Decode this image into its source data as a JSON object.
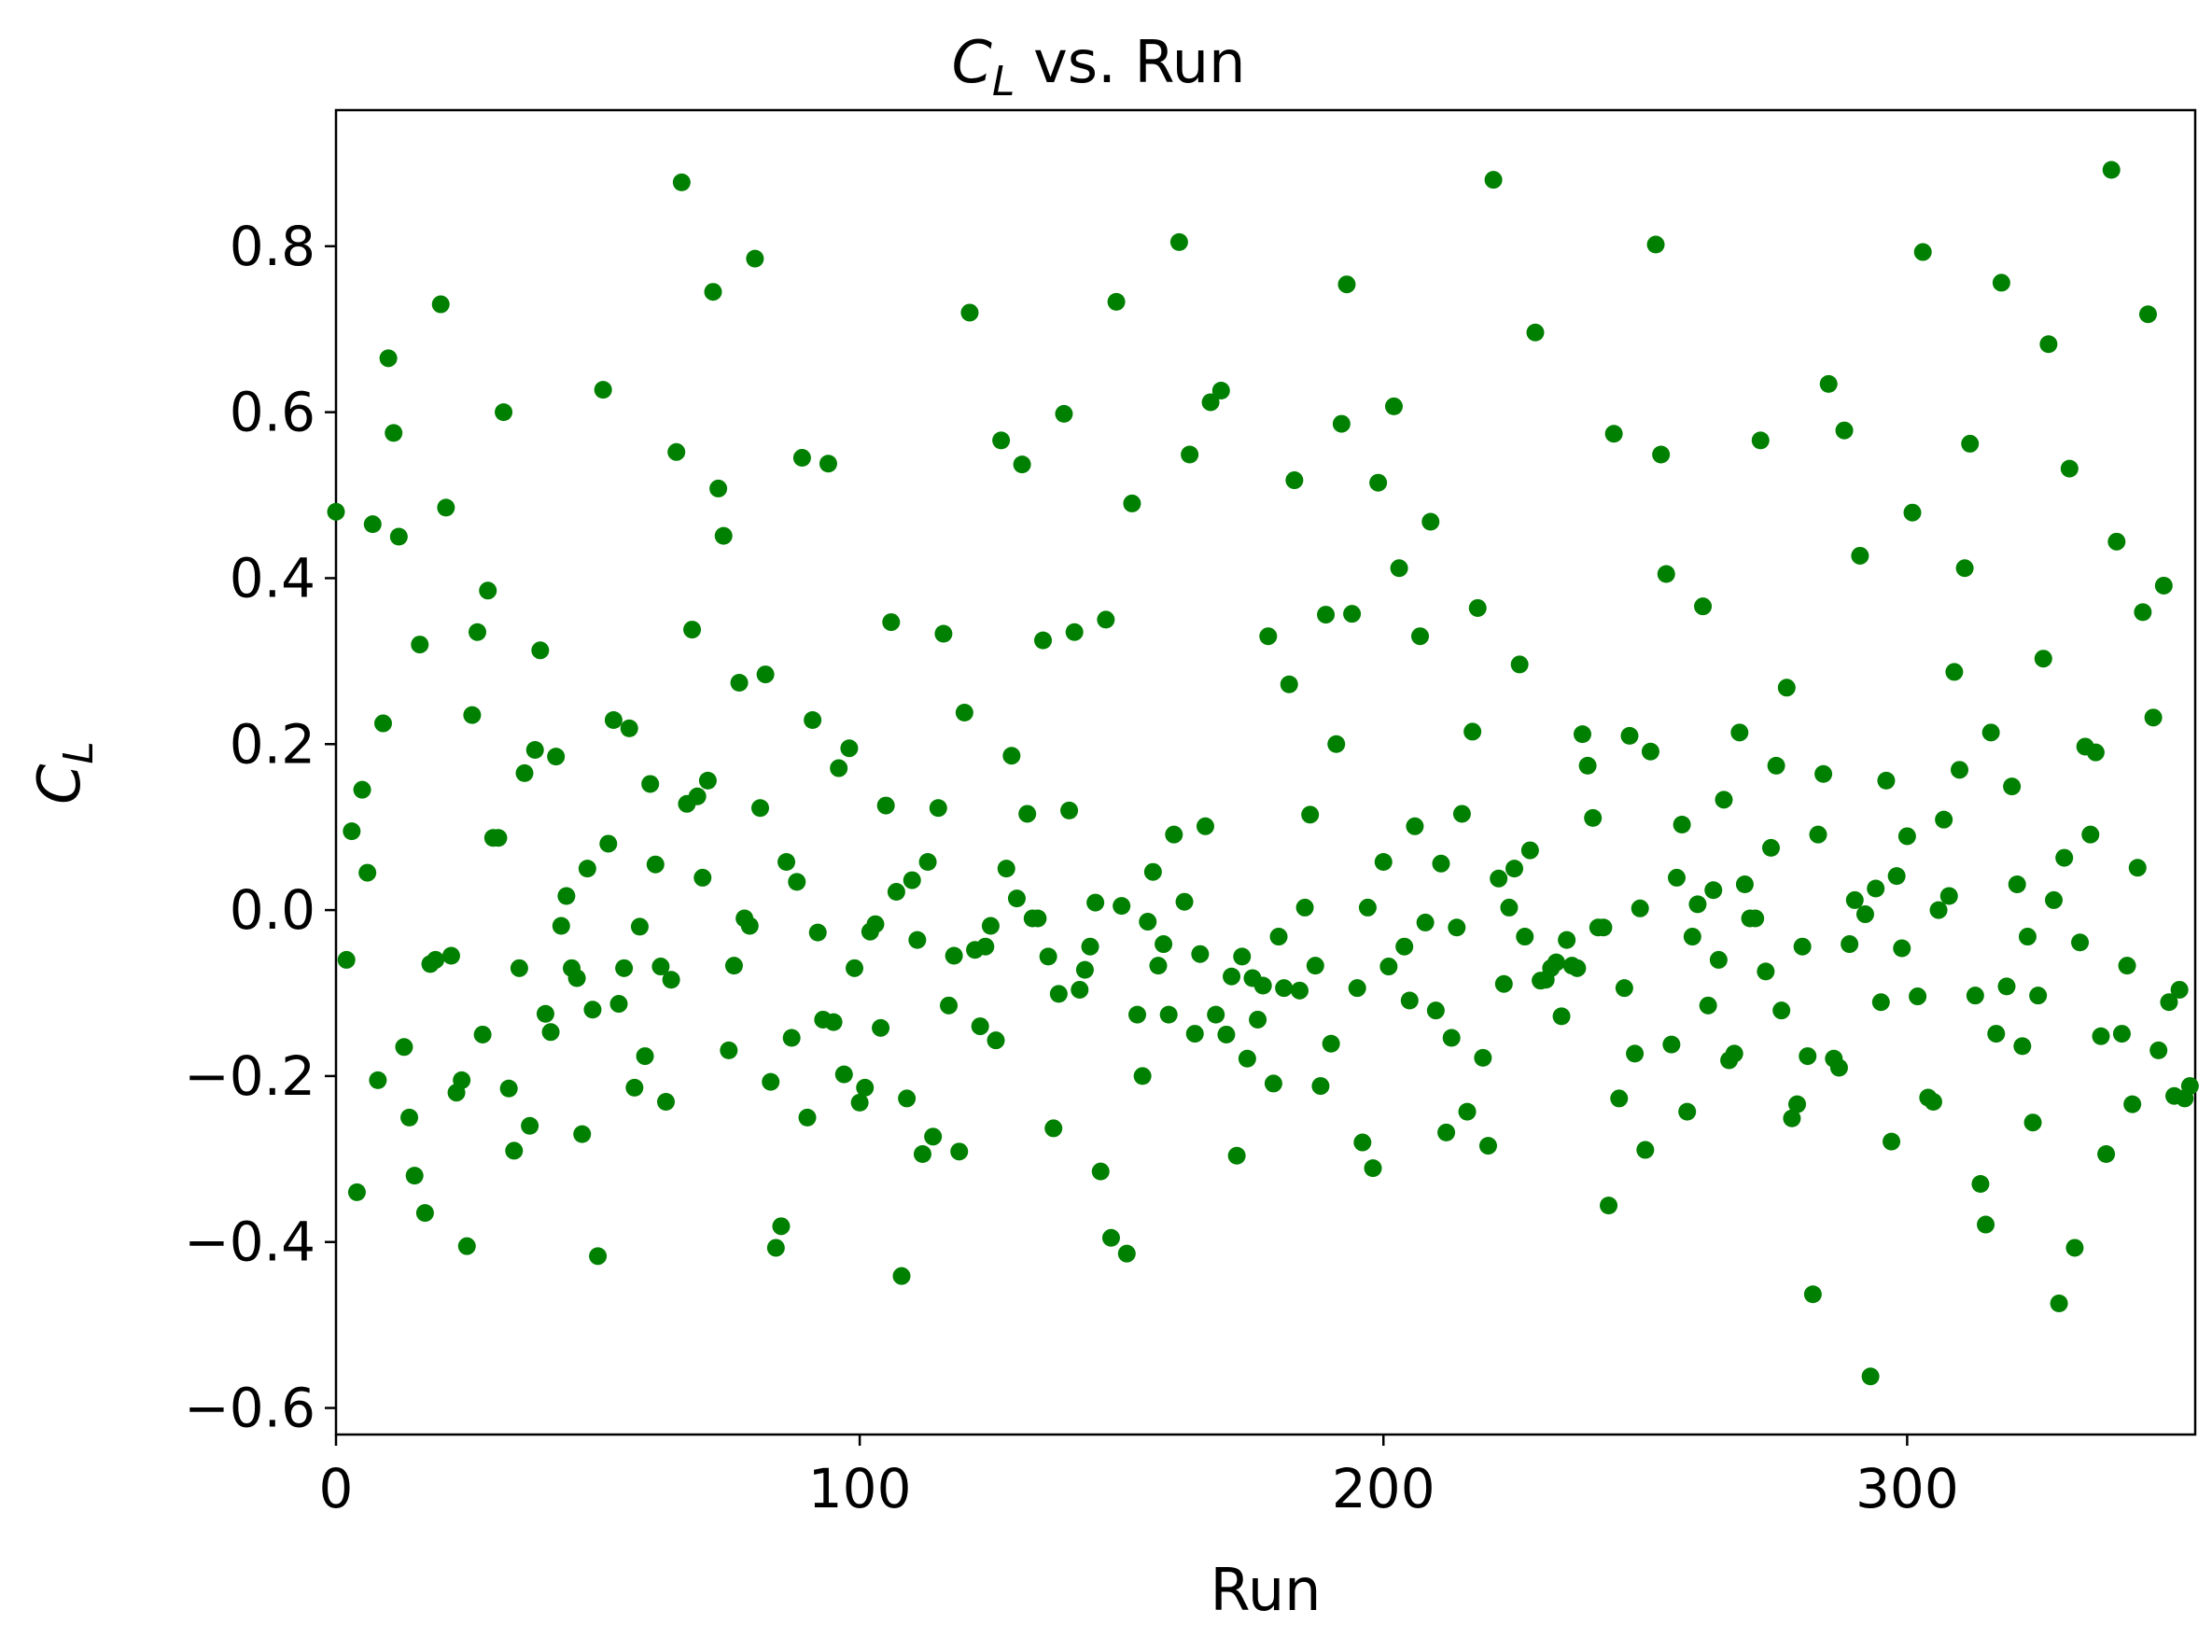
{
  "chart_data": {
    "type": "scatter",
    "title": {
      "symbol": "C",
      "subscript": "L",
      "rest": " vs. Run"
    },
    "xlabel": "Run",
    "ylabel": {
      "symbol": "C",
      "subscript": "L"
    },
    "color": "#008000",
    "xlim": [
      0,
      355
    ],
    "ylim": [
      -0.632,
      0.964
    ],
    "xticks": [
      0,
      100,
      200,
      300
    ],
    "yticks": [
      {
        "value": -0.6,
        "label": "−0.6"
      },
      {
        "value": -0.4,
        "label": "−0.4"
      },
      {
        "value": -0.2,
        "label": "−0.2"
      },
      {
        "value": 0,
        "label": "0.0"
      },
      0.2,
      0.4,
      0.6,
      0.8
    ],
    "x": [
      0,
      2,
      3,
      4,
      5,
      6,
      7,
      8,
      9,
      10,
      11,
      12,
      13,
      14,
      15,
      16,
      17,
      18,
      19,
      20,
      21,
      22,
      23,
      24,
      25,
      26,
      27,
      28,
      29,
      30,
      31,
      32,
      33,
      34,
      35,
      36,
      37,
      38,
      39,
      40,
      41,
      42,
      43,
      44,
      45,
      46,
      47,
      48,
      49,
      50,
      51,
      52,
      53,
      54,
      55,
      56,
      57,
      58,
      59,
      60,
      61,
      62,
      63,
      64,
      65,
      66,
      67,
      68,
      69,
      70,
      71,
      72,
      73,
      74,
      75,
      76,
      77,
      78,
      79,
      80,
      81,
      82,
      83,
      84,
      85,
      86,
      87,
      88,
      89,
      90,
      91,
      92,
      93,
      94,
      95,
      96,
      97,
      98,
      99,
      100,
      101,
      102,
      103,
      104,
      105,
      106,
      107,
      108,
      109,
      110,
      111,
      112,
      113,
      114,
      115,
      116,
      117,
      118,
      119,
      120,
      121,
      122,
      123,
      124,
      125,
      126,
      127,
      128,
      129,
      130,
      131,
      132,
      133,
      134,
      135,
      136,
      137,
      138,
      139,
      140,
      141,
      142,
      143,
      144,
      145,
      146,
      147,
      148,
      149,
      150,
      151,
      152,
      153,
      154,
      155,
      156,
      157,
      158,
      159,
      160,
      161,
      162,
      163,
      164,
      165,
      166,
      167,
      168,
      169,
      170,
      171,
      172,
      173,
      174,
      175,
      176,
      177,
      178,
      179,
      180,
      181,
      182,
      183,
      184,
      185,
      186,
      187,
      188,
      189,
      190,
      191,
      192,
      193,
      194,
      195,
      196,
      197,
      198,
      199,
      200,
      201,
      202,
      203,
      204,
      205,
      206,
      207,
      208,
      209,
      210,
      211,
      212,
      213,
      214,
      215,
      216,
      217,
      218,
      219,
      220,
      221,
      222,
      223,
      224,
      225,
      226,
      227,
      228,
      229,
      230,
      231,
      232,
      233,
      234,
      235,
      236,
      237,
      238,
      239,
      240,
      241,
      242,
      243,
      244,
      245,
      246,
      247,
      248,
      249,
      250,
      251,
      252,
      253,
      254,
      255,
      256,
      257,
      258,
      259,
      260,
      261,
      262,
      263,
      264,
      265,
      266,
      267,
      268,
      269,
      270,
      271,
      272,
      273,
      274,
      275,
      276,
      277,
      278,
      279,
      280,
      281,
      282,
      283,
      284,
      285,
      286,
      287,
      288,
      289,
      290,
      291,
      292,
      293,
      294,
      295,
      296,
      297,
      298,
      299,
      300,
      301,
      302,
      303,
      304,
      305,
      306,
      307,
      308,
      309,
      310,
      311,
      312,
      313,
      314,
      315,
      316,
      317,
      318,
      319,
      320,
      321,
      322,
      323,
      324,
      325,
      326,
      327,
      328,
      329,
      330,
      331,
      332,
      333,
      334,
      335,
      336,
      337,
      338,
      339,
      340,
      341,
      342,
      343,
      344,
      345,
      346,
      347,
      348,
      349,
      350,
      351,
      352,
      353,
      354
    ],
    "values": [
      0.48,
      -0.06,
      0.095,
      -0.34,
      0.145,
      0.045,
      0.465,
      -0.205,
      0.225,
      0.665,
      0.575,
      0.45,
      -0.165,
      -0.25,
      -0.32,
      0.32,
      -0.365,
      -0.065,
      -0.06,
      0.73,
      0.485,
      -0.055,
      -0.22,
      -0.205,
      -0.405,
      0.235,
      0.335,
      -0.15,
      0.385,
      0.087,
      0.087,
      0.6,
      -0.215,
      -0.29,
      -0.07,
      0.165,
      -0.26,
      0.193,
      0.313,
      -0.125,
      -0.147,
      0.185,
      -0.019,
      0.017,
      -0.07,
      -0.082,
      -0.27,
      0.05,
      -0.12,
      -0.417,
      0.627,
      0.08,
      0.229,
      -0.113,
      -0.07,
      0.219,
      -0.214,
      -0.02,
      -0.176,
      0.152,
      0.055,
      -0.068,
      -0.231,
      -0.084,
      0.552,
      0.877,
      0.128,
      0.338,
      0.137,
      0.039,
      0.156,
      0.745,
      0.508,
      0.451,
      -0.169,
      -0.067,
      0.274,
      -0.01,
      -0.019,
      0.785,
      0.123,
      0.284,
      -0.207,
      -0.407,
      -0.381,
      0.058,
      -0.154,
      0.034,
      0.545,
      -0.25,
      0.229,
      -0.027,
      -0.132,
      0.538,
      -0.135,
      0.171,
      -0.198,
      0.195,
      -0.07,
      -0.232,
      -0.214,
      -0.026,
      -0.017,
      -0.142,
      0.126,
      0.347,
      0.022,
      -0.441,
      -0.227,
      0.036,
      -0.036,
      -0.294,
      0.058,
      -0.273,
      0.123,
      0.333,
      -0.115,
      -0.055,
      -0.291,
      0.238,
      0.72,
      -0.048,
      -0.14,
      -0.044,
      -0.019,
      -0.157,
      0.566,
      0.05,
      0.186,
      0.014,
      0.537,
      0.116,
      -0.01,
      -0.01,
      0.325,
      -0.056,
      -0.263,
      -0.101,
      0.598,
      0.12,
      0.335,
      -0.096,
      -0.072,
      -0.044,
      0.009,
      -0.315,
      0.35,
      -0.395,
      0.733,
      0.005,
      -0.414,
      0.49,
      -0.126,
      -0.2,
      -0.014,
      0.046,
      -0.067,
      -0.041,
      -0.126,
      0.091,
      0.805,
      0.01,
      0.549,
      -0.149,
      -0.053,
      0.101,
      0.612,
      -0.126,
      0.626,
      -0.15,
      -0.08,
      -0.296,
      -0.056,
      -0.179,
      -0.082,
      -0.132,
      -0.091,
      0.33,
      -0.209,
      -0.032,
      -0.094,
      0.272,
      0.518,
      -0.097,
      0.003,
      0.115,
      -0.067,
      -0.212,
      0.356,
      -0.161,
      0.2,
      0.586,
      0.754,
      0.357,
      -0.094,
      -0.28,
      0.003,
      -0.311,
      0.515,
      0.058,
      -0.068,
      0.607,
      0.412,
      -0.044,
      -0.109,
      0.101,
      0.33,
      -0.015,
      0.468,
      -0.121,
      0.056,
      -0.268,
      -0.154,
      -0.021,
      0.116,
      -0.243,
      0.215,
      0.364,
      -0.178,
      -0.284,
      0.88,
      0.038,
      -0.089,
      0.003,
      0.05,
      0.296,
      -0.032,
      0.072,
      0.696,
      -0.085,
      -0.084,
      -0.07,
      -0.063,
      -0.128,
      -0.036,
      -0.067,
      -0.07,
      0.212,
      0.174,
      0.111,
      -0.021,
      -0.021,
      -0.356,
      0.574,
      -0.227,
      -0.094,
      0.21,
      -0.173,
      0.002,
      -0.289,
      0.191,
      0.802,
      0.549,
      0.405,
      -0.162,
      0.039,
      0.103,
      -0.243,
      -0.032,
      0.007,
      0.366,
      -0.115,
      0.024,
      -0.06,
      0.133,
      -0.181,
      -0.173,
      0.214,
      0.031,
      -0.01,
      -0.01,
      0.566,
      -0.074,
      0.075,
      0.174,
      -0.121,
      0.268,
      -0.251,
      -0.234,
      -0.044,
      -0.176,
      -0.463,
      0.091,
      0.164,
      0.634,
      -0.179,
      -0.19,
      0.578,
      -0.041,
      0.012,
      0.427,
      -0.005,
      -0.562,
      0.026,
      -0.111,
      0.156,
      -0.279,
      0.041,
      -0.046,
      0.089,
      0.479,
      -0.104,
      0.793,
      -0.226,
      -0.231,
      0.0,
      0.109,
      0.017,
      0.287,
      0.169,
      0.412,
      0.562,
      -0.103,
      -0.33,
      -0.379,
      0.214,
      -0.149,
      0.756,
      -0.092,
      0.149,
      0.031,
      -0.164,
      -0.032,
      -0.256,
      -0.103,
      0.303,
      0.682,
      0.012,
      -0.474,
      0.063,
      0.532,
      -0.407,
      -0.039,
      0.197,
      0.091,
      0.19,
      -0.152,
      -0.294,
      0.892,
      0.444,
      -0.149,
      -0.067,
      -0.234,
      0.051,
      0.359,
      0.718,
      0.232,
      -0.169,
      0.391,
      -0.111,
      -0.224,
      -0.096,
      -0.227,
      -0.212
    ]
  }
}
